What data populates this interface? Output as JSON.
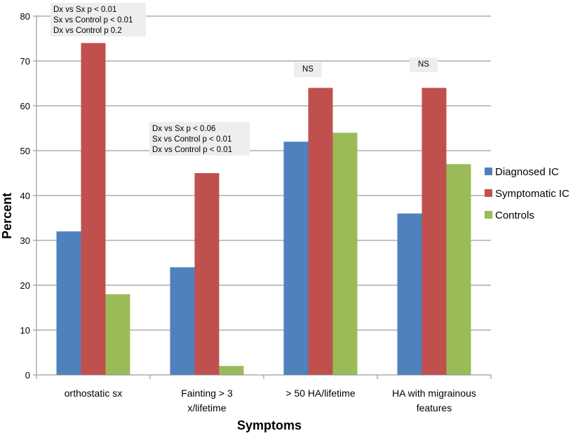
{
  "chart_data": {
    "type": "bar",
    "title": "",
    "xlabel": "Symptoms",
    "ylabel": "Percent",
    "ylim": [
      0,
      80
    ],
    "yticks": [
      0,
      10,
      20,
      30,
      40,
      50,
      60,
      70,
      80
    ],
    "grid": true,
    "legend_position": "right",
    "categories": [
      [
        "orthostatic sx"
      ],
      [
        "Fainting > 3",
        "x/lifetime"
      ],
      [
        "> 50 HA/lifetime"
      ],
      [
        "HA with migrainous",
        "features"
      ]
    ],
    "series": [
      {
        "name": "Diagnosed IC",
        "color": "#4F81BD",
        "values": [
          32,
          24,
          52,
          36
        ]
      },
      {
        "name": "Symptomatic IC",
        "color": "#C0504D",
        "values": [
          74,
          45,
          64,
          64
        ]
      },
      {
        "name": "Controls",
        "color": "#9BBB59",
        "values": [
          18,
          2,
          54,
          47
        ]
      }
    ],
    "annotations": [
      {
        "category": 0,
        "lines": [
          "Dx vs Sx p < 0.01",
          "Sx vs Control p < 0.01",
          "Dx vs Control p 0.2"
        ]
      },
      {
        "category": 1,
        "lines": [
          "Dx vs Sx p < 0.06",
          "Sx vs Control p < 0.01",
          "Dx vs Control p < 0.01"
        ]
      },
      {
        "category": 2,
        "lines": [
          "NS"
        ]
      },
      {
        "category": 3,
        "lines": [
          "NS"
        ]
      }
    ]
  }
}
